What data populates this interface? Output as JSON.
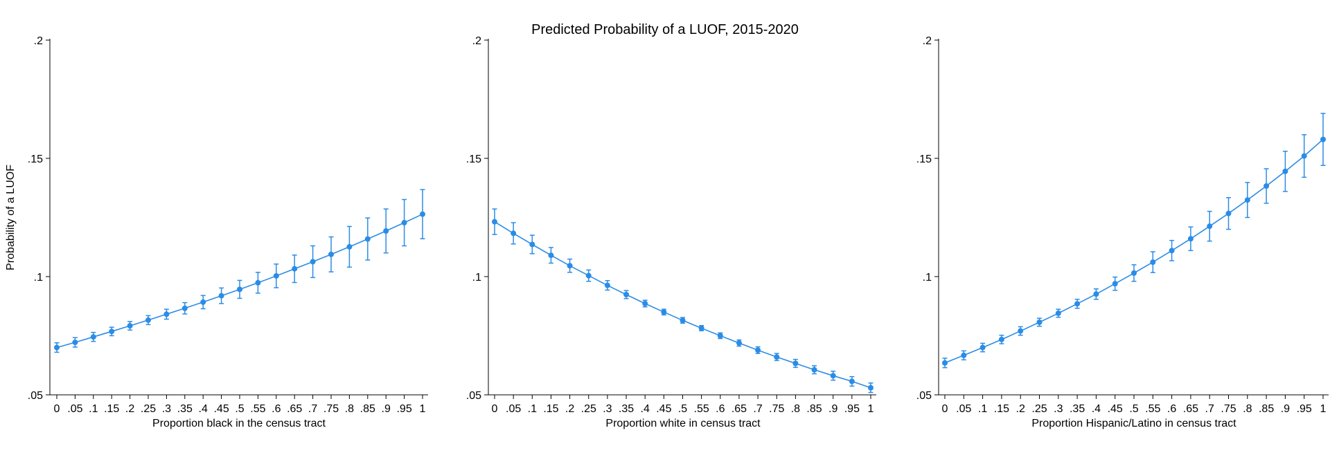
{
  "title": "Predicted Probability of a LUOF, 2015-2020",
  "colors": {
    "series": "#2b8ce6",
    "axis": "#000000",
    "background": "#ffffff"
  },
  "chart_data": [
    {
      "type": "line",
      "error_bars": true,
      "xlabel": "Proportion black in the census tract",
      "ylabel": "Probability of a LUOF",
      "xlim": [
        0,
        1
      ],
      "ylim": [
        0.05,
        0.2
      ],
      "x_ticks": [
        "0",
        ".05",
        ".1",
        ".15",
        ".2",
        ".25",
        ".3",
        ".35",
        ".4",
        ".45",
        ".5",
        ".55",
        ".6",
        ".65",
        ".7",
        ".75",
        ".8",
        ".85",
        ".9",
        ".95",
        "1"
      ],
      "y_ticks": [
        {
          "value": 0.05,
          "label": ".05"
        },
        {
          "value": 0.1,
          "label": ".1"
        },
        {
          "value": 0.15,
          "label": ".15"
        },
        {
          "value": 0.2,
          "label": ".2"
        }
      ],
      "grid": false,
      "x": [
        0,
        0.05,
        0.1,
        0.15,
        0.2,
        0.25,
        0.3,
        0.35,
        0.4,
        0.45,
        0.5,
        0.55,
        0.6,
        0.65,
        0.7,
        0.75,
        0.8,
        0.85,
        0.9,
        0.95,
        1
      ],
      "y": [
        0.07,
        0.0722,
        0.0745,
        0.0768,
        0.0792,
        0.0816,
        0.0841,
        0.0866,
        0.0892,
        0.0919,
        0.0946,
        0.0974,
        0.1003,
        0.1033,
        0.1063,
        0.1094,
        0.1126,
        0.1159,
        0.1193,
        0.1228,
        0.1264
      ],
      "ci_low": [
        0.068,
        0.0702,
        0.0726,
        0.075,
        0.0774,
        0.0797,
        0.082,
        0.0842,
        0.0864,
        0.0886,
        0.0908,
        0.093,
        0.0953,
        0.0975,
        0.0996,
        0.102,
        0.104,
        0.107,
        0.11,
        0.113,
        0.116
      ],
      "ci_high": [
        0.072,
        0.0742,
        0.0764,
        0.0786,
        0.081,
        0.0835,
        0.0862,
        0.089,
        0.092,
        0.0952,
        0.0984,
        0.1018,
        0.1053,
        0.1091,
        0.113,
        0.1168,
        0.1212,
        0.1248,
        0.1286,
        0.1326,
        0.1368
      ]
    },
    {
      "type": "line",
      "error_bars": true,
      "xlabel": "Proportion white in census tract",
      "ylabel": "",
      "xlim": [
        0,
        1
      ],
      "ylim": [
        0.05,
        0.2
      ],
      "x_ticks": [
        "0",
        ".05",
        ".1",
        ".15",
        ".2",
        ".25",
        ".3",
        ".35",
        ".4",
        ".45",
        ".5",
        ".55",
        ".6",
        ".65",
        ".7",
        ".75",
        ".8",
        ".85",
        ".9",
        ".95",
        "1"
      ],
      "y_ticks": [
        {
          "value": 0.05,
          "label": ".05"
        },
        {
          "value": 0.1,
          "label": ".1"
        },
        {
          "value": 0.15,
          "label": ".15"
        },
        {
          "value": 0.2,
          "label": ".2"
        }
      ],
      "grid": false,
      "x": [
        0,
        0.05,
        0.1,
        0.15,
        0.2,
        0.25,
        0.3,
        0.35,
        0.4,
        0.45,
        0.5,
        0.55,
        0.6,
        0.65,
        0.7,
        0.75,
        0.8,
        0.85,
        0.9,
        0.95,
        1
      ],
      "y": [
        0.1232,
        0.1183,
        0.1136,
        0.109,
        0.1046,
        0.1004,
        0.0963,
        0.0924,
        0.0886,
        0.085,
        0.0815,
        0.0782,
        0.075,
        0.0719,
        0.0689,
        0.066,
        0.0633,
        0.0606,
        0.0581,
        0.0557,
        0.053
      ],
      "ci_low": [
        0.1178,
        0.1138,
        0.1097,
        0.1057,
        0.1018,
        0.098,
        0.0943,
        0.0907,
        0.0872,
        0.0838,
        0.0803,
        0.0771,
        0.0738,
        0.0706,
        0.0675,
        0.0645,
        0.0616,
        0.0589,
        0.0562,
        0.0537,
        0.051
      ],
      "ci_high": [
        0.1286,
        0.1228,
        0.1175,
        0.1123,
        0.1074,
        0.1028,
        0.0983,
        0.0941,
        0.09,
        0.0862,
        0.0827,
        0.0793,
        0.0762,
        0.0732,
        0.0703,
        0.0675,
        0.065,
        0.0623,
        0.06,
        0.0577,
        0.055
      ]
    },
    {
      "type": "line",
      "error_bars": true,
      "xlabel": "Proportion Hispanic/Latino in census tract",
      "ylabel": "",
      "xlim": [
        0,
        1
      ],
      "ylim": [
        0.05,
        0.2
      ],
      "x_ticks": [
        "0",
        ".05",
        ".1",
        ".15",
        ".2",
        ".25",
        ".3",
        ".35",
        ".4",
        ".45",
        ".5",
        ".55",
        ".6",
        ".65",
        ".7",
        ".75",
        ".8",
        ".85",
        ".9",
        ".95",
        "1"
      ],
      "y_ticks": [
        {
          "value": 0.05,
          "label": ".05"
        },
        {
          "value": 0.1,
          "label": ".1"
        },
        {
          "value": 0.15,
          "label": ".15"
        },
        {
          "value": 0.2,
          "label": ".2"
        }
      ],
      "grid": false,
      "x": [
        0,
        0.05,
        0.1,
        0.15,
        0.2,
        0.25,
        0.3,
        0.35,
        0.4,
        0.45,
        0.5,
        0.55,
        0.6,
        0.65,
        0.7,
        0.75,
        0.8,
        0.85,
        0.9,
        0.95,
        1
      ],
      "y": [
        0.0635,
        0.0667,
        0.07,
        0.0734,
        0.077,
        0.0807,
        0.0845,
        0.0885,
        0.0926,
        0.097,
        0.1015,
        0.1061,
        0.111,
        0.116,
        0.1213,
        0.1267,
        0.1324,
        0.1383,
        0.1445,
        0.151,
        0.158
      ],
      "ci_low": [
        0.0615,
        0.0648,
        0.0682,
        0.0716,
        0.0752,
        0.079,
        0.0828,
        0.0866,
        0.0904,
        0.0942,
        0.098,
        0.1017,
        0.1067,
        0.111,
        0.115,
        0.12,
        0.125,
        0.131,
        0.136,
        0.142,
        0.147
      ],
      "ci_high": [
        0.0655,
        0.0686,
        0.0718,
        0.0752,
        0.0788,
        0.0824,
        0.0862,
        0.0904,
        0.0948,
        0.0998,
        0.105,
        0.1105,
        0.1153,
        0.121,
        0.1276,
        0.1334,
        0.1398,
        0.1456,
        0.153,
        0.16,
        0.169
      ]
    }
  ]
}
